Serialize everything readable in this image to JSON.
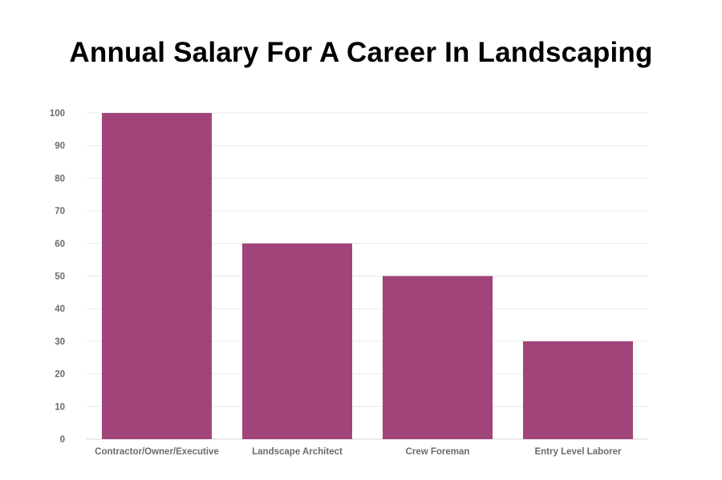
{
  "chart_data": {
    "type": "bar",
    "title": "Annual Salary For A Career In Landscaping",
    "xlabel": "",
    "ylabel": "",
    "categories": [
      "Contractor/Owner/Executive",
      "Landscape Architect",
      "Crew Foreman",
      "Entry Level Laborer"
    ],
    "values": [
      100,
      60,
      50,
      30
    ],
    "ylim": [
      0,
      100
    ],
    "yticks": [
      0,
      10,
      20,
      30,
      40,
      50,
      60,
      70,
      80,
      90,
      100
    ],
    "grid": true,
    "legend": "none",
    "bar_color": "#a04479"
  }
}
